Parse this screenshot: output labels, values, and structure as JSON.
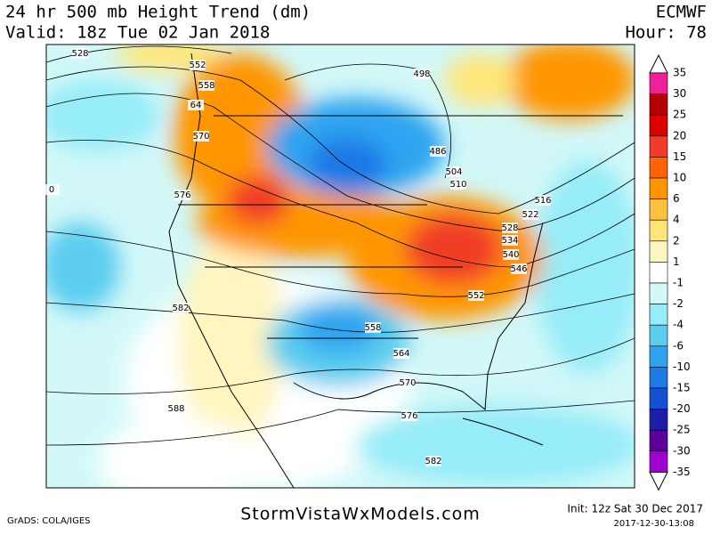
{
  "header": {
    "title": "24 hr 500 mb Height Trend (dm)",
    "valid": "Valid: 18z Tue 02 Jan 2018",
    "model": "ECMWF",
    "hour": "Hour: 78"
  },
  "colorbar": {
    "labels": [
      "35",
      "30",
      "25",
      "20",
      "15",
      "10",
      "6",
      "4",
      "2",
      "1",
      "-1",
      "-2",
      "-4",
      "-6",
      "-10",
      "-15",
      "-20",
      "-25",
      "-30",
      "-35"
    ],
    "colors": [
      "#f0209a",
      "#b40000",
      "#dc0000",
      "#f03c28",
      "#ff6400",
      "#ff9600",
      "#ffc040",
      "#ffe678",
      "#fff5c0",
      "#ffffff",
      "#d2f8f8",
      "#96ecf8",
      "#5ccdf0",
      "#2ea4f0",
      "#1e78e6",
      "#1450d2",
      "#1e1eaa",
      "#5a009b",
      "#a000d2"
    ]
  },
  "contour_labels": [
    "528",
    "552",
    "558",
    "64",
    "570",
    "576",
    "582",
    "588",
    "498",
    "486",
    "504",
    "510",
    "516",
    "522",
    "528",
    "534",
    "540",
    "546",
    "552",
    "558",
    "564",
    "570",
    "576",
    "582",
    "0"
  ],
  "footer": {
    "software": "GrADS: COLA/IGES",
    "site": "StormVistaWxModels.com",
    "init": "Init: 12z Sat 30 Dec 2017",
    "stamp": "2017-12-30-13:08"
  }
}
